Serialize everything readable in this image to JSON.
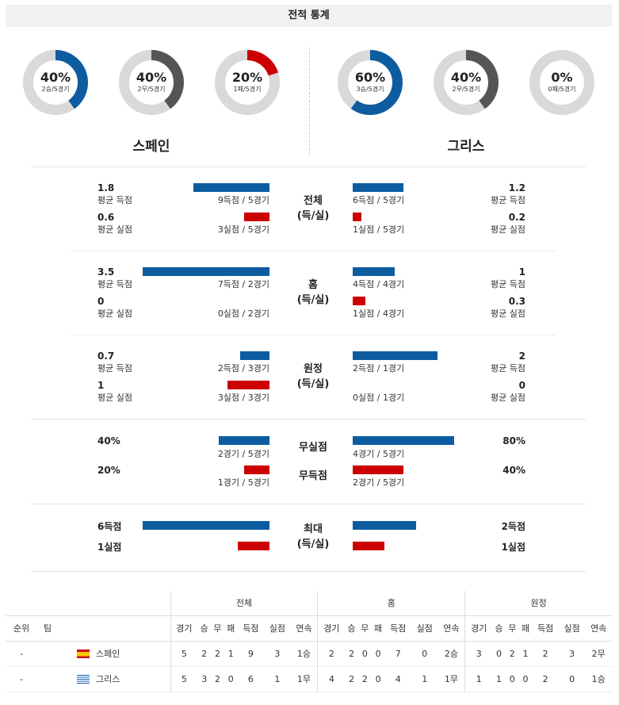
{
  "header": {
    "title": "전적 통계"
  },
  "donuts": [
    {
      "pct": "40%",
      "sub": "2승/5경기",
      "value": 0.4,
      "color": "#0e5ca0"
    },
    {
      "pct": "40%",
      "sub": "2무/5경기",
      "value": 0.4,
      "color": "#555555"
    },
    {
      "pct": "20%",
      "sub": "1패/5경기",
      "value": 0.2,
      "color": "#cc0000"
    },
    {
      "pct": "60%",
      "sub": "3승/5경기",
      "value": 0.6,
      "color": "#0e5ca0"
    },
    {
      "pct": "40%",
      "sub": "2무/5경기",
      "value": 0.4,
      "color": "#555555"
    },
    {
      "pct": "0%",
      "sub": "0패/5경기",
      "value": 0.0,
      "color": "#cc0000"
    }
  ],
  "teams": {
    "home": "스페인",
    "away": "그리스"
  },
  "sections": {
    "total": {
      "title1": "전체",
      "title2": "(득/실)",
      "home": {
        "gf": "1.8",
        "gf_label": "평균 득점",
        "gf_cnt": "9득점 / 5경기",
        "ga": "0.6",
        "ga_label": "평균 실점",
        "ga_cnt": "3실점 / 5경기"
      },
      "away": {
        "gf": "1.2",
        "gf_label": "평균 득점",
        "gf_cnt": "6득점 / 5경기",
        "ga": "0.2",
        "ga_label": "평균 실점",
        "ga_cnt": "1실점 / 5경기"
      }
    },
    "home": {
      "title1": "홈",
      "title2": "(득/실)",
      "home": {
        "gf": "3.5",
        "gf_label": "평균 득점",
        "gf_cnt": "7득점 / 2경기",
        "ga": "0",
        "ga_label": "평균 실점",
        "ga_cnt": "0실점 / 2경기"
      },
      "away": {
        "gf": "1",
        "gf_label": "평균 득점",
        "gf_cnt": "4득점 / 4경기",
        "ga": "0.3",
        "ga_label": "평균 실점",
        "ga_cnt": "1실점 / 4경기"
      }
    },
    "away": {
      "title1": "원정",
      "title2": "(득/실)",
      "home": {
        "gf": "0.7",
        "gf_label": "평균 득점",
        "gf_cnt": "2득점 / 3경기",
        "ga": "1",
        "ga_label": "평균 실점",
        "ga_cnt": "3실점 / 3경기"
      },
      "away": {
        "gf": "2",
        "gf_label": "평균 득점",
        "gf_cnt": "2득점 / 1경기",
        "ga": "0",
        "ga_label": "평균 실점",
        "ga_cnt": "0실점 / 1경기"
      }
    },
    "clean": {
      "t1": "무실점",
      "t2": "무득점",
      "home": {
        "cs": "40%",
        "cs_cnt": "2경기 / 5경기",
        "fs": "20%",
        "fs_cnt": "1경기 / 5경기"
      },
      "away": {
        "cs": "80%",
        "cs_cnt": "4경기 / 5경기",
        "fs": "40%",
        "fs_cnt": "2경기 / 5경기"
      }
    },
    "max": {
      "title1": "최대",
      "title2": "(득/실)",
      "home": {
        "gf": "6득점",
        "ga": "1실점"
      },
      "away": {
        "gf": "2득점",
        "ga": "1실점"
      }
    }
  },
  "standings": {
    "groups": [
      "전체",
      "홈",
      "원정"
    ],
    "cols": [
      "순위",
      "팀"
    ],
    "sub": [
      "경기",
      "승",
      "무",
      "패",
      "득점",
      "실점",
      "연속"
    ],
    "rows": [
      {
        "rank": "-",
        "team": "스페인",
        "vals": [
          "5",
          "2",
          "2",
          "1",
          "9",
          "3",
          "1승",
          "2",
          "2",
          "0",
          "0",
          "7",
          "0",
          "2승",
          "3",
          "0",
          "2",
          "1",
          "2",
          "3",
          "2무"
        ]
      },
      {
        "rank": "-",
        "team": "그리스",
        "vals": [
          "5",
          "3",
          "2",
          "0",
          "6",
          "1",
          "1무",
          "4",
          "2",
          "2",
          "0",
          "4",
          "1",
          "1무",
          "1",
          "1",
          "0",
          "0",
          "2",
          "0",
          "1승"
        ]
      }
    ]
  }
}
